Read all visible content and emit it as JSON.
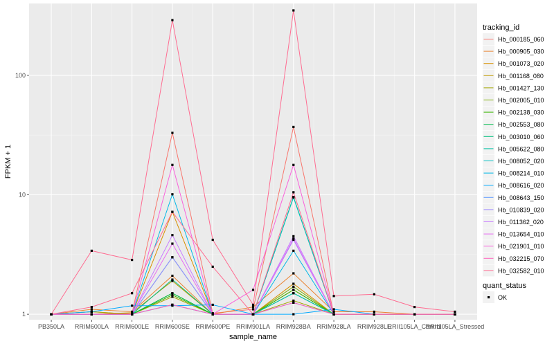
{
  "chart_data": {
    "type": "line",
    "xlabel": "sample_name",
    "ylabel": "FPKM + 1",
    "yscale": "log10",
    "ylim": [
      0.9,
      400
    ],
    "yticks": [
      {
        "value": 1,
        "label": "1"
      },
      {
        "value": 10,
        "label": "10"
      },
      {
        "value": 100,
        "label": "100"
      }
    ],
    "categories": [
      "PB350LA",
      "RRIM600LA",
      "RRIM600LE",
      "RRIM600SE",
      "RRIM600PE",
      "RRIM901LA",
      "RRIM928BA",
      "RRIM928LA",
      "RRIM928LE",
      "RRII105LA_Control",
      "RRII105LA_Stressed"
    ],
    "grid": true,
    "legend_placement": "right",
    "legend_title": "tracking_id",
    "shape_legend": {
      "title": "quant_status",
      "items": [
        {
          "label": "OK",
          "marker": "square"
        }
      ]
    },
    "series": [
      {
        "name": "Hb_000185_060",
        "color": "#F8766D",
        "values": [
          1.0,
          1.0,
          1.02,
          33,
          1.02,
          1.1,
          37,
          1.0,
          1.0,
          1.0,
          1.0
        ]
      },
      {
        "name": "Hb_000905_030",
        "color": "#EA8331",
        "values": [
          1.0,
          1.1,
          1.05,
          2.1,
          1.0,
          1.15,
          2.2,
          1.05,
          1.05,
          1.0,
          1.0
        ]
      },
      {
        "name": "Hb_001073_020",
        "color": "#D89000",
        "values": [
          1.0,
          1.05,
          1.0,
          7.2,
          1.0,
          1.0,
          1.8,
          1.0,
          1.0,
          1.0,
          1.0
        ]
      },
      {
        "name": "Hb_001168_080",
        "color": "#C09B00",
        "values": [
          1.0,
          1.0,
          1.03,
          1.9,
          1.0,
          1.0,
          1.6,
          1.0,
          1.0,
          1.0,
          1.0
        ]
      },
      {
        "name": "Hb_001427_130",
        "color": "#A3A500",
        "values": [
          1.0,
          1.05,
          1.0,
          1.4,
          1.0,
          1.0,
          1.3,
          1.0,
          1.0,
          1.0,
          1.0
        ]
      },
      {
        "name": "Hb_002005_010",
        "color": "#7CAE00",
        "values": [
          1.0,
          1.0,
          1.0,
          1.5,
          1.0,
          1.0,
          1.7,
          1.0,
          1.0,
          1.0,
          1.0
        ]
      },
      {
        "name": "Hb_002138_030",
        "color": "#39B600",
        "values": [
          1.0,
          1.0,
          1.0,
          1.45,
          1.0,
          1.0,
          1.6,
          1.0,
          1.0,
          1.0,
          1.0
        ]
      },
      {
        "name": "Hb_002553_080",
        "color": "#00BB4E",
        "values": [
          1.0,
          1.0,
          1.0,
          1.5,
          1.0,
          1.0,
          9.6,
          1.0,
          1.0,
          1.0,
          1.0
        ]
      },
      {
        "name": "Hb_003010_060",
        "color": "#00BF7D",
        "values": [
          1.0,
          1.0,
          1.0,
          1.95,
          1.0,
          1.0,
          1.5,
          1.0,
          1.0,
          1.0,
          1.0
        ]
      },
      {
        "name": "Hb_005622_080",
        "color": "#00C1A3",
        "values": [
          1.0,
          1.0,
          1.0,
          1.2,
          1.0,
          1.0,
          1.5,
          1.0,
          1.0,
          1.0,
          1.0
        ]
      },
      {
        "name": "Hb_008052_020",
        "color": "#00BFC4",
        "values": [
          1.0,
          1.0,
          1.0,
          3.0,
          1.0,
          1.0,
          9.5,
          1.0,
          1.0,
          1.0,
          1.0
        ]
      },
      {
        "name": "Hb_008214_010",
        "color": "#00B8E7",
        "values": [
          1.0,
          1.0,
          1.0,
          10.1,
          1.0,
          1.0,
          3.4,
          1.0,
          1.0,
          1.0,
          1.0
        ]
      },
      {
        "name": "Hb_008616_020",
        "color": "#00A9FF",
        "values": [
          1.0,
          1.05,
          1.18,
          1.18,
          1.2,
          1.0,
          1.0,
          1.1,
          1.0,
          1.0,
          1.0
        ]
      },
      {
        "name": "Hb_008643_150",
        "color": "#619CFF",
        "values": [
          1.0,
          1.0,
          1.0,
          1.2,
          1.0,
          1.0,
          1.25,
          1.0,
          1.0,
          1.0,
          1.0
        ]
      },
      {
        "name": "Hb_010839_020",
        "color": "#9F8CFF",
        "values": [
          1.0,
          1.0,
          1.0,
          3.0,
          1.0,
          1.0,
          4.2,
          1.0,
          1.0,
          1.0,
          1.0
        ]
      },
      {
        "name": "Hb_011362_020",
        "color": "#C77CFF",
        "values": [
          1.0,
          1.0,
          1.0,
          4.6,
          1.0,
          1.0,
          4.5,
          1.0,
          1.0,
          1.0,
          1.0
        ]
      },
      {
        "name": "Hb_013654_010",
        "color": "#E76BF3",
        "values": [
          1.0,
          1.0,
          1.0,
          3.9,
          1.0,
          1.0,
          4.3,
          1.0,
          1.0,
          1.0,
          1.0
        ]
      },
      {
        "name": "Hb_021901_010",
        "color": "#FA62DB",
        "values": [
          1.0,
          1.0,
          1.0,
          17.8,
          1.0,
          1.6,
          17.8,
          1.0,
          1.0,
          1.0,
          1.0
        ]
      },
      {
        "name": "Hb_032215_070",
        "color": "#FF62BC",
        "values": [
          1.0,
          1.0,
          1.0,
          1.2,
          1.0,
          1.0,
          1.25,
          1.0,
          1.0,
          1.0,
          1.0
        ]
      },
      {
        "name": "Hb_032582_010",
        "color": "#FF6C91",
        "values": [
          1.0,
          3.4,
          2.85,
          290,
          4.2,
          1.2,
          350,
          1.42,
          1.47,
          1.15,
          1.05
        ]
      }
    ],
    "extra_lines": [
      {
        "color": "#FF6C91",
        "values": [
          1.0,
          1.15,
          1.5,
          7.2,
          2.5,
          1.0,
          10.5,
          1.0,
          1.0,
          1.0,
          1.0
        ]
      }
    ]
  }
}
